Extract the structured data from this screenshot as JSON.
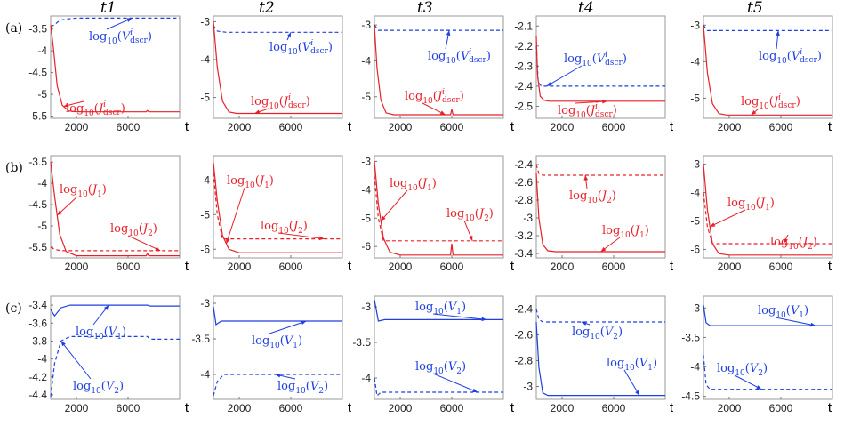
{
  "figure": {
    "column_titles": [
      "t1",
      "t2",
      "t3",
      "t4",
      "t5"
    ],
    "row_labels": [
      "(a)",
      "(b)",
      "(c)"
    ],
    "x_axis_label": "t",
    "colors": {
      "red": "#e8202a",
      "blue": "#1f3fe0"
    }
  },
  "chart_data": [
    {
      "type": "line",
      "row": "(a)",
      "column": "t1",
      "xlabel": "t",
      "xticks": [
        2000,
        6000
      ],
      "xlim": [
        0,
        10000
      ],
      "yticks": [
        -3.5,
        -4,
        -4.5,
        -5,
        -5.5
      ],
      "ylim": [
        -5.55,
        -3.2
      ],
      "series": [
        {
          "label": "log10(V^i_dscr)",
          "color": "blue",
          "style": "dashed",
          "x": [
            0,
            300,
            700,
            1200,
            2000,
            10000
          ],
          "y": [
            -3.45,
            -3.4,
            -3.3,
            -3.27,
            -3.25,
            -3.25
          ]
        },
        {
          "label": "log10(J^i_dscr)",
          "color": "red",
          "style": "solid",
          "x": [
            0,
            200,
            500,
            900,
            1400,
            2000,
            7400,
            7500,
            7600,
            10000
          ],
          "y": [
            -3.4,
            -3.9,
            -4.8,
            -5.25,
            -5.38,
            -5.4,
            -5.4,
            -5.37,
            -5.4,
            -5.4
          ]
        }
      ]
    },
    {
      "type": "line",
      "row": "(a)",
      "column": "t2",
      "xlabel": "t",
      "xticks": [
        2000,
        6000
      ],
      "xlim": [
        0,
        10000
      ],
      "yticks": [
        -3,
        -4,
        -5
      ],
      "ylim": [
        -5.55,
        -2.85
      ],
      "series": [
        {
          "label": "log10(V^i_dscr)",
          "color": "blue",
          "style": "dashed",
          "x": [
            0,
            300,
            1000,
            10000
          ],
          "y": [
            -3.1,
            -3.25,
            -3.28,
            -3.28
          ]
        },
        {
          "label": "log10(J^i_dscr)",
          "color": "red",
          "style": "solid",
          "x": [
            0,
            300,
            700,
            1200,
            1800,
            10000
          ],
          "y": [
            -3.0,
            -4.2,
            -5.1,
            -5.38,
            -5.42,
            -5.42
          ]
        }
      ]
    },
    {
      "type": "line",
      "row": "(a)",
      "column": "t3",
      "xlabel": "t",
      "xticks": [
        2000,
        6000
      ],
      "xlim": [
        0,
        10000
      ],
      "yticks": [
        -3,
        -4,
        -5
      ],
      "ylim": [
        -5.6,
        -2.75
      ],
      "series": [
        {
          "label": "log10(V^i_dscr)",
          "color": "blue",
          "style": "dashed",
          "x": [
            0,
            300,
            10000
          ],
          "y": [
            -3.0,
            -3.15,
            -3.15
          ],
          "legend_text": "log10(V^i_dscr)"
        },
        {
          "label": "log10(J^i_dscr)",
          "color": "red",
          "style": "solid",
          "x": [
            0,
            200,
            500,
            900,
            1500,
            5900,
            6000,
            6100,
            10000
          ],
          "y": [
            -3.0,
            -4.2,
            -5.1,
            -5.45,
            -5.5,
            -5.5,
            -5.35,
            -5.5,
            -5.5
          ]
        }
      ]
    },
    {
      "type": "line",
      "row": "(a)",
      "column": "t4",
      "xlabel": "t",
      "xticks": [
        2000,
        6000
      ],
      "xlim": [
        0,
        10000
      ],
      "yticks": [
        -2.1,
        -2.2,
        -2.3,
        -2.4,
        -2.5
      ],
      "ylim": [
        -2.56,
        -2.05
      ],
      "series": [
        {
          "label": "log10(V^i_dscr)",
          "color": "blue",
          "style": "dashed",
          "x": [
            0,
            150,
            400,
            10000
          ],
          "y": [
            -2.2,
            -2.38,
            -2.4,
            -2.4
          ]
        },
        {
          "label": "log10(J^i_dscr)",
          "color": "red",
          "style": "solid",
          "x": [
            0,
            100,
            300,
            600,
            1000,
            10000
          ],
          "y": [
            -2.15,
            -2.35,
            -2.45,
            -2.47,
            -2.475,
            -2.475
          ]
        }
      ]
    },
    {
      "type": "line",
      "row": "(a)",
      "column": "t5",
      "xlabel": "t",
      "xticks": [
        2000,
        6000
      ],
      "xlim": [
        0,
        10000
      ],
      "yticks": [
        -3,
        -4,
        -5
      ],
      "ylim": [
        -5.55,
        -2.75
      ],
      "series": [
        {
          "label": "log10(V^i_dscr)",
          "color": "blue",
          "style": "dashed",
          "x": [
            0,
            300,
            10000
          ],
          "y": [
            -3.0,
            -3.15,
            -3.15
          ]
        },
        {
          "label": "log10(J^i_dscr)",
          "color": "red",
          "style": "solid",
          "x": [
            0,
            300,
            700,
            1200,
            1800,
            10000
          ],
          "y": [
            -3.0,
            -4.3,
            -5.15,
            -5.42,
            -5.46,
            -5.46
          ]
        }
      ]
    },
    {
      "type": "line",
      "row": "(b)",
      "column": "t1",
      "xlabel": "t",
      "xticks": [
        2000,
        6000
      ],
      "xlim": [
        0,
        10000
      ],
      "yticks": [
        -3.5,
        -4,
        -4.5,
        -5,
        -5.5
      ],
      "ylim": [
        -5.75,
        -3.35
      ],
      "series": [
        {
          "label": "log10(J1)",
          "color": "red",
          "style": "solid",
          "x": [
            0,
            300,
            700,
            1200,
            2000,
            7400,
            7500,
            7600,
            10000
          ],
          "y": [
            -3.5,
            -4.3,
            -5.2,
            -5.6,
            -5.7,
            -5.7,
            -5.65,
            -5.7,
            -5.7
          ]
        },
        {
          "label": "log10(J2)",
          "color": "red",
          "style": "dashed",
          "x": [
            0,
            300,
            800,
            10000
          ],
          "y": [
            -5.5,
            -5.55,
            -5.58,
            -5.58
          ]
        }
      ]
    },
    {
      "type": "line",
      "row": "(b)",
      "column": "t2",
      "xlabel": "t",
      "xticks": [
        2000,
        6000
      ],
      "xlim": [
        0,
        10000
      ],
      "yticks": [
        -4,
        -5,
        -6
      ],
      "ylim": [
        -6.25,
        -3.3
      ],
      "series": [
        {
          "label": "log10(J1)",
          "color": "red",
          "style": "solid",
          "x": [
            0,
            300,
            700,
            1200,
            2000,
            10000
          ],
          "y": [
            -3.5,
            -4.6,
            -5.6,
            -6.0,
            -6.1,
            -6.1
          ]
        },
        {
          "label": "log10(J2)",
          "color": "red",
          "style": "dashed",
          "x": [
            0,
            300,
            700,
            10000
          ],
          "y": [
            -3.8,
            -5.0,
            -5.7,
            -5.7
          ]
        }
      ]
    },
    {
      "type": "line",
      "row": "(b)",
      "column": "t3",
      "xlabel": "t",
      "xticks": [
        2000,
        6000
      ],
      "xlim": [
        0,
        10000
      ],
      "yticks": [
        -3,
        -4,
        -5,
        -6
      ],
      "ylim": [
        -6.4,
        -2.8
      ],
      "series": [
        {
          "label": "log10(J1)",
          "color": "red",
          "style": "solid",
          "x": [
            0,
            300,
            700,
            1200,
            2000,
            5900,
            6000,
            6100,
            10000
          ],
          "y": [
            -3.0,
            -4.5,
            -5.7,
            -6.2,
            -6.3,
            -6.3,
            -5.9,
            -6.3,
            -6.3
          ]
        },
        {
          "label": "log10(J2)",
          "color": "red",
          "style": "dashed",
          "x": [
            0,
            300,
            700,
            10000
          ],
          "y": [
            -3.5,
            -5.0,
            -5.8,
            -5.8
          ]
        }
      ]
    },
    {
      "type": "line",
      "row": "(b)",
      "column": "t4",
      "xlabel": "t",
      "xticks": [
        2000,
        6000
      ],
      "xlim": [
        0,
        10000
      ],
      "yticks": [
        -2.4,
        -2.6,
        -2.8,
        -3,
        -3.2,
        -3.4
      ],
      "ylim": [
        -3.45,
        -2.3
      ],
      "series": [
        {
          "label": "log10(J2)",
          "color": "red",
          "style": "dashed",
          "x": [
            0,
            200,
            500,
            10000
          ],
          "y": [
            -2.4,
            -2.5,
            -2.52,
            -2.52
          ]
        },
        {
          "label": "log10(J1)",
          "color": "red",
          "style": "solid",
          "x": [
            0,
            200,
            500,
            900,
            1500,
            10000
          ],
          "y": [
            -2.5,
            -3.0,
            -3.3,
            -3.37,
            -3.38,
            -3.38
          ]
        }
      ]
    },
    {
      "type": "line",
      "row": "(b)",
      "column": "t5",
      "xlabel": "t",
      "xticks": [
        2000,
        6000
      ],
      "xlim": [
        0,
        10000
      ],
      "yticks": [
        -3,
        -4,
        -5,
        -6
      ],
      "ylim": [
        -6.3,
        -2.7
      ],
      "series": [
        {
          "label": "log10(J1)",
          "color": "red",
          "style": "solid",
          "x": [
            0,
            300,
            700,
            1200,
            2000,
            10000
          ],
          "y": [
            -3.0,
            -4.6,
            -5.8,
            -6.15,
            -6.2,
            -6.2
          ]
        },
        {
          "label": "log10(J2)",
          "color": "red",
          "style": "dashed",
          "x": [
            0,
            300,
            700,
            10000
          ],
          "y": [
            -4.0,
            -5.2,
            -5.8,
            -5.8
          ]
        }
      ]
    },
    {
      "type": "line",
      "row": "(c)",
      "column": "t1",
      "xlabel": "t",
      "xticks": [
        2000,
        6000
      ],
      "xlim": [
        0,
        10000
      ],
      "yticks": [
        -3.4,
        -3.6,
        -3.8,
        -4,
        -4.2,
        -4.4
      ],
      "ylim": [
        -4.45,
        -3.3
      ],
      "series": [
        {
          "label": "log10(V1)",
          "color": "blue",
          "style": "solid",
          "x": [
            0,
            300,
            800,
            1500,
            7500,
            7700,
            10000
          ],
          "y": [
            -3.45,
            -3.52,
            -3.43,
            -3.4,
            -3.4,
            -3.41,
            -3.41
          ]
        },
        {
          "label": "log10(V2)",
          "color": "blue",
          "style": "dashed",
          "x": [
            0,
            300,
            800,
            1500,
            7500,
            7700,
            10000
          ],
          "y": [
            -4.42,
            -4.05,
            -3.8,
            -3.75,
            -3.75,
            -3.78,
            -3.78
          ]
        }
      ]
    },
    {
      "type": "line",
      "row": "(c)",
      "column": "t2",
      "xlabel": "t",
      "xticks": [
        2000,
        6000
      ],
      "xlim": [
        0,
        10000
      ],
      "yticks": [
        -3,
        -3.5,
        -4
      ],
      "ylim": [
        -4.35,
        -2.9
      ],
      "series": [
        {
          "label": "log10(V1)",
          "color": "blue",
          "style": "solid",
          "x": [
            0,
            200,
            600,
            10000
          ],
          "y": [
            -3.05,
            -3.3,
            -3.25,
            -3.25
          ]
        },
        {
          "label": "log10(V2)",
          "color": "blue",
          "style": "dashed",
          "x": [
            0,
            300,
            800,
            1500,
            10000
          ],
          "y": [
            -4.3,
            -4.1,
            -4.0,
            -4.0,
            -4.0
          ]
        }
      ]
    },
    {
      "type": "line",
      "row": "(c)",
      "column": "t3",
      "xlabel": "t",
      "xticks": [
        2000,
        6000
      ],
      "xlim": [
        0,
        10000
      ],
      "yticks": [
        -3,
        -3.5,
        -4
      ],
      "ylim": [
        -4.3,
        -2.85
      ],
      "series": [
        {
          "label": "log10(V1)",
          "color": "blue",
          "style": "solid",
          "x": [
            0,
            300,
            800,
            10000
          ],
          "y": [
            -2.9,
            -3.2,
            -3.18,
            -3.18
          ]
        },
        {
          "label": "log10(V2)",
          "color": "blue",
          "style": "dashed",
          "x": [
            0,
            200,
            500,
            10000
          ],
          "y": [
            -4.0,
            -4.25,
            -4.2,
            -4.2
          ]
        }
      ]
    },
    {
      "type": "line",
      "row": "(c)",
      "column": "t4",
      "xlabel": "t",
      "xticks": [
        2000,
        6000
      ],
      "xlim": [
        0,
        10000
      ],
      "yticks": [
        -2.4,
        -2.6,
        -2.8,
        -3
      ],
      "ylim": [
        -3.1,
        -2.3
      ],
      "series": [
        {
          "label": "log10(V2)",
          "color": "blue",
          "style": "dashed",
          "x": [
            0,
            200,
            500,
            10000
          ],
          "y": [
            -2.4,
            -2.48,
            -2.5,
            -2.5
          ]
        },
        {
          "label": "log10(V1)",
          "color": "blue",
          "style": "solid",
          "x": [
            0,
            200,
            500,
            900,
            1500,
            10000
          ],
          "y": [
            -2.5,
            -2.85,
            -3.05,
            -3.07,
            -3.07,
            -3.07
          ]
        }
      ]
    },
    {
      "type": "line",
      "row": "(c)",
      "column": "t5",
      "xlabel": "t",
      "xticks": [
        2000,
        6000
      ],
      "xlim": [
        0,
        10000
      ],
      "yticks": [
        -3,
        -3.5,
        -4,
        -4.5
      ],
      "ylim": [
        -4.55,
        -2.8
      ],
      "series": [
        {
          "label": "log10(V1)",
          "color": "blue",
          "style": "solid",
          "x": [
            0,
            200,
            500,
            10000
          ],
          "y": [
            -2.95,
            -3.25,
            -3.3,
            -3.3
          ]
        },
        {
          "label": "log10(V2)",
          "color": "blue",
          "style": "dashed",
          "x": [
            0,
            200,
            500,
            10000
          ],
          "y": [
            -3.8,
            -4.3,
            -4.38,
            -4.38
          ]
        }
      ]
    }
  ]
}
